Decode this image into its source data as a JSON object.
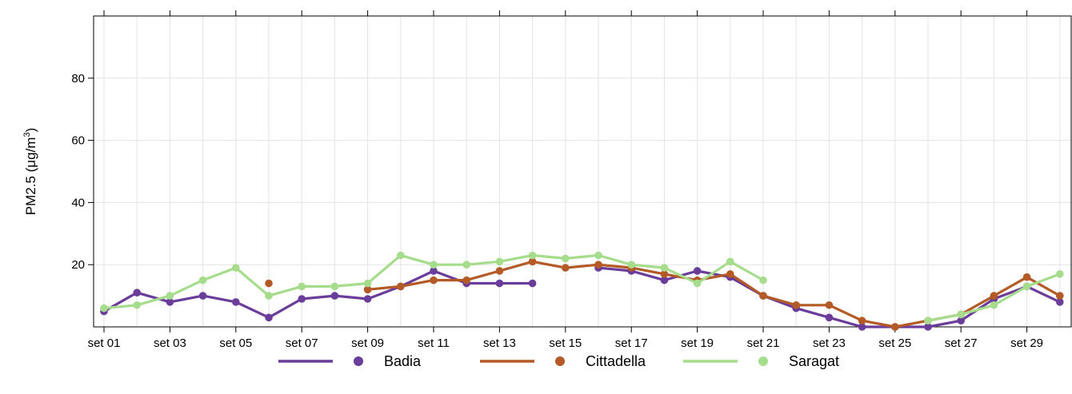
{
  "chart_data": {
    "type": "line",
    "ylabel": "PM2.5 (μg/m³)",
    "ylabel_parts": {
      "main": "PM2.5 (μg/m",
      "sup": "3",
      "close": ")"
    },
    "xlim": [
      1,
      30.5
    ],
    "ylim": [
      0,
      100
    ],
    "y_ticks": [
      20,
      40,
      60,
      80
    ],
    "x_ticks": [
      {
        "day": 1,
        "label": "set 01"
      },
      {
        "day": 3,
        "label": "set 03"
      },
      {
        "day": 5,
        "label": "set 05"
      },
      {
        "day": 7,
        "label": "set 07"
      },
      {
        "day": 9,
        "label": "set 09"
      },
      {
        "day": 11,
        "label": "set 11"
      },
      {
        "day": 13,
        "label": "set 13"
      },
      {
        "day": 15,
        "label": "set 15"
      },
      {
        "day": 17,
        "label": "set 17"
      },
      {
        "day": 19,
        "label": "set 19"
      },
      {
        "day": 21,
        "label": "set 21"
      },
      {
        "day": 23,
        "label": "set 23"
      },
      {
        "day": 25,
        "label": "set 25"
      },
      {
        "day": 27,
        "label": "set 27"
      },
      {
        "day": 29,
        "label": "set 29"
      }
    ],
    "grid": true,
    "legend_position": "bottom",
    "x": [
      1,
      2,
      3,
      4,
      5,
      6,
      7,
      8,
      9,
      10,
      11,
      12,
      13,
      14,
      15,
      16,
      17,
      18,
      19,
      20,
      21,
      22,
      23,
      24,
      25,
      26,
      27,
      28,
      29,
      30
    ],
    "series": [
      {
        "name": "Badia",
        "color": "#6a3d9a",
        "values": [
          5,
          11,
          8,
          10,
          8,
          3,
          9,
          10,
          9,
          13,
          18,
          14,
          14,
          14,
          null,
          19,
          18,
          15,
          18,
          16,
          10,
          6,
          3,
          0,
          0,
          0,
          2,
          9,
          13,
          8
        ]
      },
      {
        "name": "Cittadella",
        "color": "#b35a26",
        "values": [
          null,
          null,
          null,
          null,
          null,
          14,
          null,
          null,
          12,
          13,
          15,
          15,
          18,
          21,
          19,
          20,
          19,
          17,
          15,
          17,
          10,
          7,
          7,
          2,
          0,
          2,
          4,
          10,
          16,
          10
        ]
      },
      {
        "name": "Saragat",
        "color": "#a6dd8c",
        "values": [
          6,
          7,
          10,
          15,
          19,
          10,
          13,
          13,
          14,
          23,
          20,
          20,
          21,
          23,
          22,
          23,
          20,
          19,
          14,
          21,
          15,
          null,
          null,
          null,
          null,
          2,
          4,
          7,
          13,
          17
        ]
      }
    ]
  }
}
